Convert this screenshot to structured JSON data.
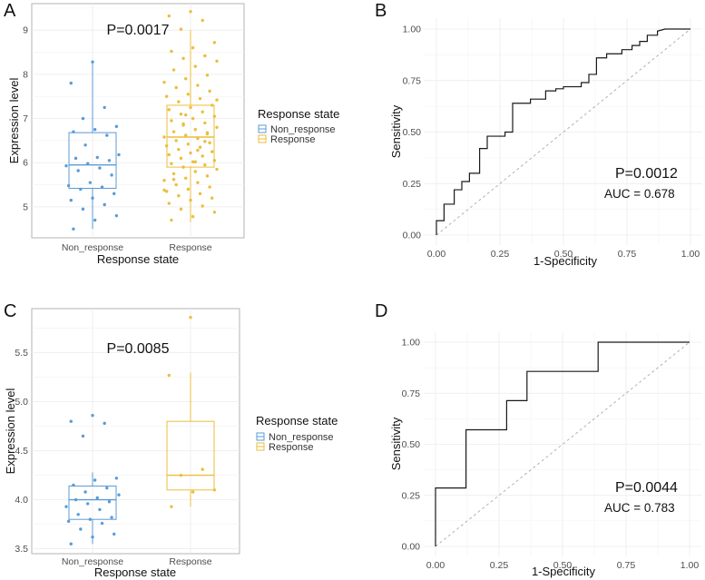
{
  "chart_data": [
    {
      "panel": "A",
      "type": "box",
      "title": "",
      "annotation": "P=0.0017",
      "xlabel": "Response state",
      "ylabel": "Expression level",
      "categories": [
        "Non_response",
        "Response"
      ],
      "ylim": [
        4.3,
        9.6
      ],
      "yticks": [
        5,
        6,
        7,
        8,
        9
      ],
      "legend": {
        "title": "Response state",
        "position": "right",
        "entries": [
          "Non_response",
          "Response"
        ]
      },
      "boxes": [
        {
          "name": "Non_response",
          "color": "#5b9bd5",
          "min": 4.5,
          "q1": 5.42,
          "median": 5.95,
          "q3": 6.68,
          "max": 8.25
        },
        {
          "name": "Response",
          "color": "#ebbe3c",
          "min": 4.65,
          "q1": 5.9,
          "median": 6.58,
          "q3": 7.3,
          "max": 9.0
        }
      ],
      "points": [
        {
          "group": 0,
          "values": [
            8.28,
            7.8,
            7.25,
            7.0,
            6.82,
            6.75,
            6.7,
            6.62,
            6.4,
            6.18,
            6.12,
            6.1,
            6.05,
            5.98,
            5.93,
            5.88,
            5.82,
            5.72,
            5.55,
            5.48,
            5.45,
            5.4,
            5.3,
            5.2,
            5.15,
            5.05,
            4.95,
            4.8,
            4.7,
            4.5
          ]
        },
        {
          "group": 1,
          "values": [
            9.42,
            9.32,
            9.22,
            9.02,
            8.72,
            8.6,
            8.52,
            8.42,
            8.36,
            8.3,
            8.18,
            8.1,
            7.98,
            7.9,
            7.82,
            7.75,
            7.7,
            7.62,
            7.55,
            7.5,
            7.45,
            7.38,
            7.3,
            7.25,
            7.2,
            7.15,
            7.1,
            7.05,
            7.0,
            6.95,
            6.9,
            6.85,
            6.8,
            6.75,
            6.7,
            6.65,
            6.62,
            6.58,
            6.55,
            6.5,
            6.45,
            6.42,
            6.38,
            6.35,
            6.3,
            6.25,
            6.22,
            6.18,
            6.15,
            6.1,
            6.05,
            6.02,
            5.98,
            5.95,
            5.9,
            5.85,
            5.8,
            5.75,
            5.7,
            5.65,
            5.6,
            5.55,
            5.5,
            5.45,
            5.4,
            5.35,
            5.3,
            5.25,
            5.2,
            5.15,
            5.08,
            5.02,
            4.95,
            4.88,
            4.78,
            4.7,
            6.48,
            6.88,
            7.42,
            6.02,
            5.62,
            6.68,
            7.08,
            5.38,
            6.28
          ]
        }
      ]
    },
    {
      "panel": "B",
      "type": "roc",
      "annotation": "P=0.0012",
      "auc_text": "AUC = 0.678",
      "xlabel": "1-Specificity",
      "ylabel": "Sensitivity",
      "xlim": [
        0,
        1
      ],
      "ylim": [
        0,
        1
      ],
      "xticks": [
        "0.00",
        "0.25",
        "0.50",
        "0.75",
        "1.00"
      ],
      "yticks": [
        "0.00",
        "0.25",
        "0.50",
        "0.75",
        "1.00"
      ],
      "x": [
        0,
        0,
        0.03,
        0.03,
        0.07,
        0.07,
        0.1,
        0.1,
        0.13,
        0.13,
        0.17,
        0.17,
        0.2,
        0.2,
        0.27,
        0.27,
        0.3,
        0.3,
        0.37,
        0.37,
        0.43,
        0.43,
        0.47,
        0.47,
        0.5,
        0.5,
        0.57,
        0.57,
        0.6,
        0.6,
        0.63,
        0.63,
        0.67,
        0.67,
        0.73,
        0.73,
        0.77,
        0.77,
        0.8,
        0.8,
        0.83,
        0.83,
        0.87,
        0.87,
        0.9,
        1.0
      ],
      "y": [
        0,
        0.07,
        0.07,
        0.15,
        0.15,
        0.22,
        0.22,
        0.26,
        0.26,
        0.3,
        0.3,
        0.42,
        0.42,
        0.48,
        0.48,
        0.5,
        0.5,
        0.64,
        0.64,
        0.66,
        0.66,
        0.7,
        0.7,
        0.71,
        0.71,
        0.72,
        0.72,
        0.74,
        0.74,
        0.78,
        0.78,
        0.86,
        0.86,
        0.88,
        0.88,
        0.9,
        0.9,
        0.92,
        0.92,
        0.94,
        0.94,
        0.97,
        0.97,
        0.99,
        1.0,
        1.0
      ]
    },
    {
      "panel": "C",
      "type": "box",
      "annotation": "P=0.0085",
      "xlabel": "Response state",
      "ylabel": "Expression level",
      "categories": [
        "Non_response",
        "Response"
      ],
      "ylim": [
        3.45,
        5.95
      ],
      "yticks": [
        3.5,
        4.0,
        4.5,
        5.0,
        5.5
      ],
      "legend": {
        "title": "Response state",
        "position": "right",
        "entries": [
          "Non_response",
          "Response"
        ]
      },
      "boxes": [
        {
          "name": "Non_response",
          "color": "#5b9bd5",
          "min": 3.55,
          "q1": 3.8,
          "median": 4.0,
          "q3": 4.14,
          "max": 4.28
        },
        {
          "name": "Response",
          "color": "#ebbe3c",
          "min": 3.93,
          "q1": 4.1,
          "median": 4.25,
          "q3": 4.8,
          "max": 5.3
        }
      ],
      "points": [
        {
          "group": 0,
          "values": [
            4.86,
            4.8,
            4.78,
            4.65,
            4.22,
            4.2,
            4.15,
            4.12,
            4.08,
            4.05,
            4.02,
            4.0,
            3.98,
            3.96,
            3.93,
            3.9,
            3.85,
            3.82,
            3.8,
            3.78,
            3.76,
            3.7,
            3.65,
            3.62,
            3.55
          ]
        },
        {
          "group": 1,
          "values": [
            5.86,
            5.27,
            4.31,
            4.25,
            4.1,
            4.08,
            3.93
          ]
        }
      ]
    },
    {
      "panel": "D",
      "type": "roc",
      "annotation": "P=0.0044",
      "auc_text": "AUC = 0.783",
      "xlabel": "1-Specificity",
      "ylabel": "Sensitivity",
      "xlim": [
        0,
        1
      ],
      "ylim": [
        0,
        1
      ],
      "xticks": [
        "0.00",
        "0.25",
        "0.50",
        "0.75",
        "1.00"
      ],
      "yticks": [
        "0.00",
        "0.25",
        "0.50",
        "0.75",
        "1.00"
      ],
      "x": [
        0,
        0,
        0.12,
        0.12,
        0.28,
        0.28,
        0.36,
        0.36,
        0.64,
        0.64,
        1.0
      ],
      "y": [
        0,
        0.286,
        0.286,
        0.571,
        0.571,
        0.714,
        0.714,
        0.857,
        0.857,
        1.0,
        1.0
      ]
    }
  ]
}
